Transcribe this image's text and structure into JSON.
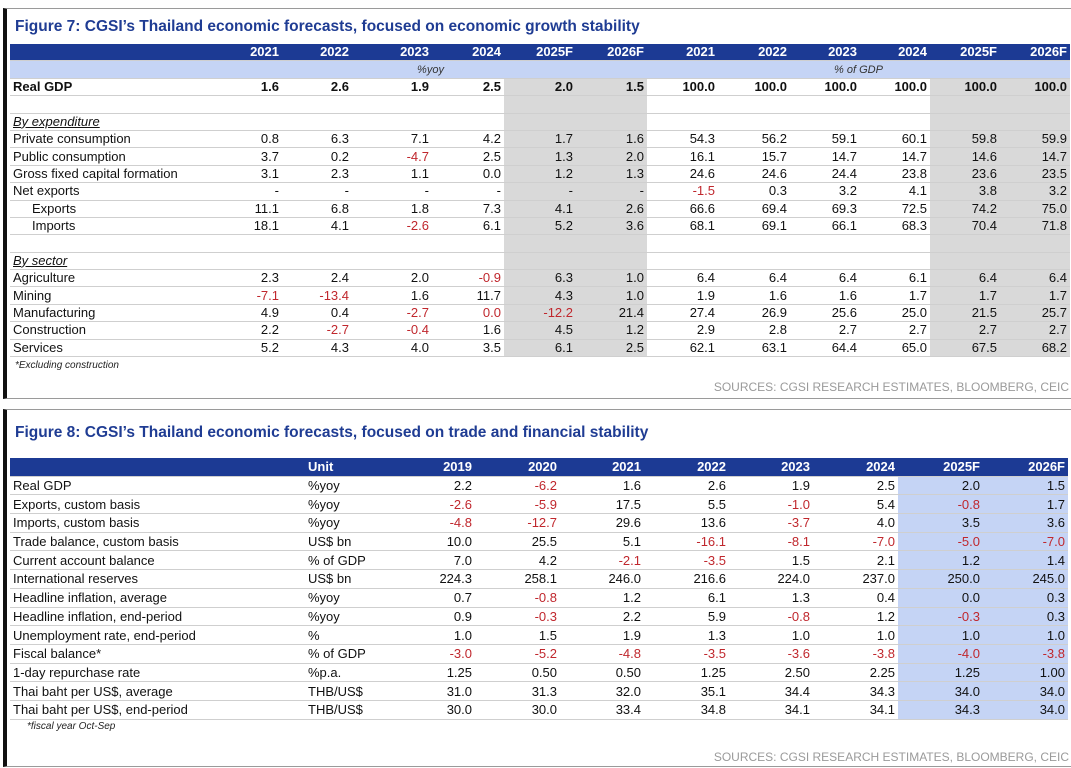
{
  "fig7": {
    "title": "Figure 7: CGSI’s Thailand economic forecasts, focused on economic growth stability",
    "years": [
      "2021",
      "2022",
      "2023",
      "2024",
      "2025F",
      "2026F",
      "2021",
      "2022",
      "2023",
      "2024",
      "2025F",
      "2026F"
    ],
    "yoy_label": "%yoy",
    "gdp_label": "% of GDP",
    "rows": [
      {
        "label": "Real GDP",
        "type": "bold",
        "values": [
          "1.6",
          "2.6",
          "1.9",
          "2.5",
          "2.0",
          "1.5",
          "100.0",
          "100.0",
          "100.0",
          "100.0",
          "100.0",
          "100.0"
        ]
      },
      {
        "label": "",
        "type": "blank",
        "values": []
      },
      {
        "label": "By expenditure",
        "type": "heading",
        "values": []
      },
      {
        "label": "Private consumption",
        "type": "row",
        "values": [
          "0.8",
          "6.3",
          "7.1",
          "4.2",
          "1.7",
          "1.6",
          "54.3",
          "56.2",
          "59.1",
          "60.1",
          "59.8",
          "59.9"
        ]
      },
      {
        "label": "Public consumption",
        "type": "row",
        "values": [
          "3.7",
          "0.2",
          "-4.7",
          "2.5",
          "1.3",
          "2.0",
          "16.1",
          "15.7",
          "14.7",
          "14.7",
          "14.6",
          "14.7"
        ]
      },
      {
        "label": "Gross fixed capital formation",
        "type": "row",
        "values": [
          "3.1",
          "2.3",
          "1.1",
          "0.0",
          "1.2",
          "1.3",
          "24.6",
          "24.6",
          "24.4",
          "23.8",
          "23.6",
          "23.5"
        ]
      },
      {
        "label": "Net exports",
        "type": "row",
        "values": [
          "-",
          "-",
          "-",
          "-",
          "-",
          "-",
          "-1.5",
          "0.3",
          "3.2",
          "4.1",
          "3.8",
          "3.2"
        ]
      },
      {
        "label": "Exports",
        "type": "indent",
        "values": [
          "11.1",
          "6.8",
          "1.8",
          "7.3",
          "4.1",
          "2.6",
          "66.6",
          "69.4",
          "69.3",
          "72.5",
          "74.2",
          "75.0"
        ]
      },
      {
        "label": "Imports",
        "type": "indent",
        "values": [
          "18.1",
          "4.1",
          "-2.6",
          "6.1",
          "5.2",
          "3.6",
          "68.1",
          "69.1",
          "66.1",
          "68.3",
          "70.4",
          "71.8"
        ]
      },
      {
        "label": "",
        "type": "blank",
        "values": []
      },
      {
        "label": "By sector",
        "type": "heading",
        "values": []
      },
      {
        "label": "Agriculture",
        "type": "row",
        "values": [
          "2.3",
          "2.4",
          "2.0",
          "-0.9",
          "6.3",
          "1.0",
          "6.4",
          "6.4",
          "6.4",
          "6.1",
          "6.4",
          "6.4"
        ]
      },
      {
        "label": "Mining",
        "type": "row",
        "values": [
          "-7.1",
          "-13.4",
          "1.6",
          "11.7",
          "4.3",
          "1.0",
          "1.9",
          "1.6",
          "1.6",
          "1.7",
          "1.7",
          "1.7"
        ]
      },
      {
        "label": "Manufacturing",
        "type": "row",
        "values": [
          "4.9",
          "0.4",
          "-2.7",
          "0.0",
          "-12.2",
          "21.4",
          "27.4",
          "26.9",
          "25.6",
          "25.0",
          "21.5",
          "25.7"
        ],
        "red_extra": [
          3
        ]
      },
      {
        "label": "Construction",
        "type": "row",
        "values": [
          "2.2",
          "-2.7",
          "-0.4",
          "1.6",
          "4.5",
          "1.2",
          "2.9",
          "2.8",
          "2.7",
          "2.7",
          "2.7",
          "2.7"
        ]
      },
      {
        "label": "Services",
        "type": "row",
        "values": [
          "5.2",
          "4.3",
          "4.0",
          "3.5",
          "6.1",
          "2.5",
          "62.1",
          "63.1",
          "64.4",
          "65.0",
          "67.5",
          "68.2"
        ]
      }
    ],
    "footnote": "*Excluding construction",
    "sources": "SOURCES: CGSI RESEARCH ESTIMATES, BLOOMBERG, CEIC"
  },
  "fig8": {
    "title": "Figure 8: CGSI’s Thailand economic forecasts, focused on trade and financial stability",
    "unit_header": "Unit",
    "years": [
      "2019",
      "2020",
      "2021",
      "2022",
      "2023",
      "2024",
      "2025F",
      "2026F"
    ],
    "rows": [
      {
        "label": "Real GDP",
        "unit": "%yoy",
        "values": [
          "2.2",
          "-6.2",
          "1.6",
          "2.6",
          "1.9",
          "2.5",
          "2.0",
          "1.5"
        ]
      },
      {
        "label": "Exports, custom basis",
        "unit": "%yoy",
        "values": [
          "-2.6",
          "-5.9",
          "17.5",
          "5.5",
          "-1.0",
          "5.4",
          "-0.8",
          "1.7"
        ]
      },
      {
        "label": "Imports, custom basis",
        "unit": "%yoy",
        "values": [
          "-4.8",
          "-12.7",
          "29.6",
          "13.6",
          "-3.7",
          "4.0",
          "3.5",
          "3.6"
        ]
      },
      {
        "label": "Trade balance, custom basis",
        "unit": "US$ bn",
        "values": [
          "10.0",
          "25.5",
          "5.1",
          "-16.1",
          "-8.1",
          "-7.0",
          "-5.0",
          "-7.0"
        ]
      },
      {
        "label": "Current account balance",
        "unit": "% of GDP",
        "values": [
          "7.0",
          "4.2",
          "-2.1",
          "-3.5",
          "1.5",
          "2.1",
          "1.2",
          "1.4"
        ]
      },
      {
        "label": "International reserves",
        "unit": "US$ bn",
        "values": [
          "224.3",
          "258.1",
          "246.0",
          "216.6",
          "224.0",
          "237.0",
          "250.0",
          "245.0"
        ]
      },
      {
        "label": "Headline inflation, average",
        "unit": "%yoy",
        "values": [
          "0.7",
          "-0.8",
          "1.2",
          "6.1",
          "1.3",
          "0.4",
          "0.0",
          "0.3"
        ]
      },
      {
        "label": "Headline inflation, end-period",
        "unit": "%yoy",
        "values": [
          "0.9",
          "-0.3",
          "2.2",
          "5.9",
          "-0.8",
          "1.2",
          "-0.3",
          "0.3"
        ]
      },
      {
        "label": "Unemployment rate, end-period",
        "unit": "%",
        "values": [
          "1.0",
          "1.5",
          "1.9",
          "1.3",
          "1.0",
          "1.0",
          "1.0",
          "1.0"
        ]
      },
      {
        "label": "Fiscal balance*",
        "unit": "% of GDP",
        "values": [
          "-3.0",
          "-5.2",
          "-4.8",
          "-3.5",
          "-3.6",
          "-3.8",
          "-4.0",
          "-3.8"
        ]
      },
      {
        "label": "1-day repurchase rate",
        "unit": "%p.a.",
        "values": [
          "1.25",
          "0.50",
          "0.50",
          "1.25",
          "2.50",
          "2.25",
          "1.25",
          "1.00"
        ]
      },
      {
        "label": "Thai baht per US$, average",
        "unit": "THB/US$",
        "values": [
          "31.0",
          "31.3",
          "32.0",
          "35.1",
          "34.4",
          "34.3",
          "34.0",
          "34.0"
        ]
      },
      {
        "label": "Thai baht per US$, end-period",
        "unit": "THB/US$",
        "values": [
          "30.0",
          "30.0",
          "33.4",
          "34.8",
          "34.1",
          "34.1",
          "34.3",
          "34.0"
        ]
      }
    ],
    "footnote": "*fiscal year Oct-Sep",
    "sources": "SOURCES: CGSI RESEARCH ESTIMATES, BLOOMBERG, CEIC"
  },
  "colors": {
    "header_navy": "#1c3a94",
    "title_blue": "#1f3c93",
    "forecast_gray": "#d9d9d9",
    "forecast_blue": "#c5d4f5",
    "negative_red": "#c0272d"
  }
}
